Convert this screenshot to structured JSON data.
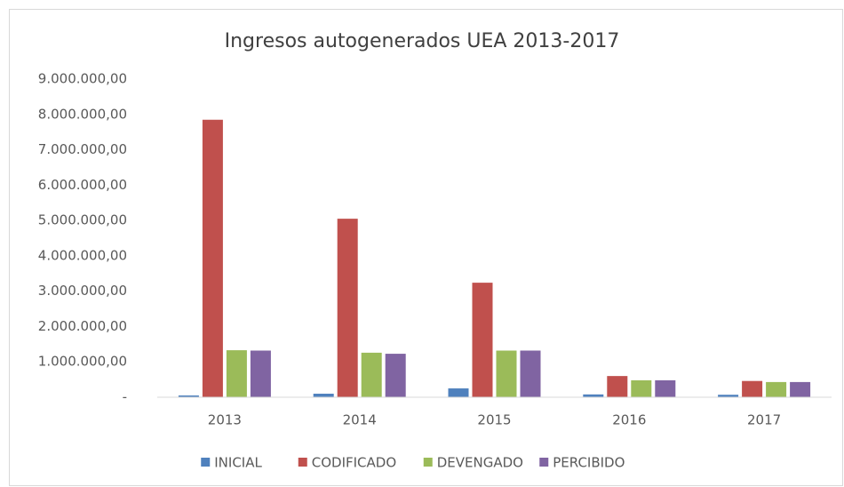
{
  "chart_data": {
    "type": "bar",
    "title": "Ingresos autogenerados UEA 2013-2017",
    "categories": [
      "2013",
      "2014",
      "2015",
      "2016",
      "2017"
    ],
    "series": [
      {
        "name": "INICIAL",
        "color": "#4f81bd",
        "values": [
          50000,
          100000,
          250000,
          80000,
          70000
        ]
      },
      {
        "name": "CODIFICADO",
        "color": "#c0504d",
        "values": [
          7850000,
          5050000,
          3240000,
          600000,
          460000
        ]
      },
      {
        "name": "DEVENGADO",
        "color": "#9bbb59",
        "values": [
          1330000,
          1260000,
          1320000,
          480000,
          430000
        ]
      },
      {
        "name": "PERCIBIDO",
        "color": "#8064a2",
        "values": [
          1320000,
          1230000,
          1320000,
          480000,
          430000
        ]
      }
    ],
    "ylim": [
      0,
      9000000
    ],
    "yticks": [
      {
        "value": 0,
        "label": "-"
      },
      {
        "value": 1000000,
        "label": "1.000.000,00"
      },
      {
        "value": 2000000,
        "label": "2.000.000,00"
      },
      {
        "value": 3000000,
        "label": "3.000.000,00"
      },
      {
        "value": 4000000,
        "label": "4.000.000,00"
      },
      {
        "value": 5000000,
        "label": "5.000.000,00"
      },
      {
        "value": 6000000,
        "label": "6.000.000,00"
      },
      {
        "value": 7000000,
        "label": "7.000.000,00"
      },
      {
        "value": 8000000,
        "label": "8.000.000,00"
      },
      {
        "value": 9000000,
        "label": "9.000.000,00"
      }
    ],
    "grid": false,
    "legend": "bottom"
  }
}
